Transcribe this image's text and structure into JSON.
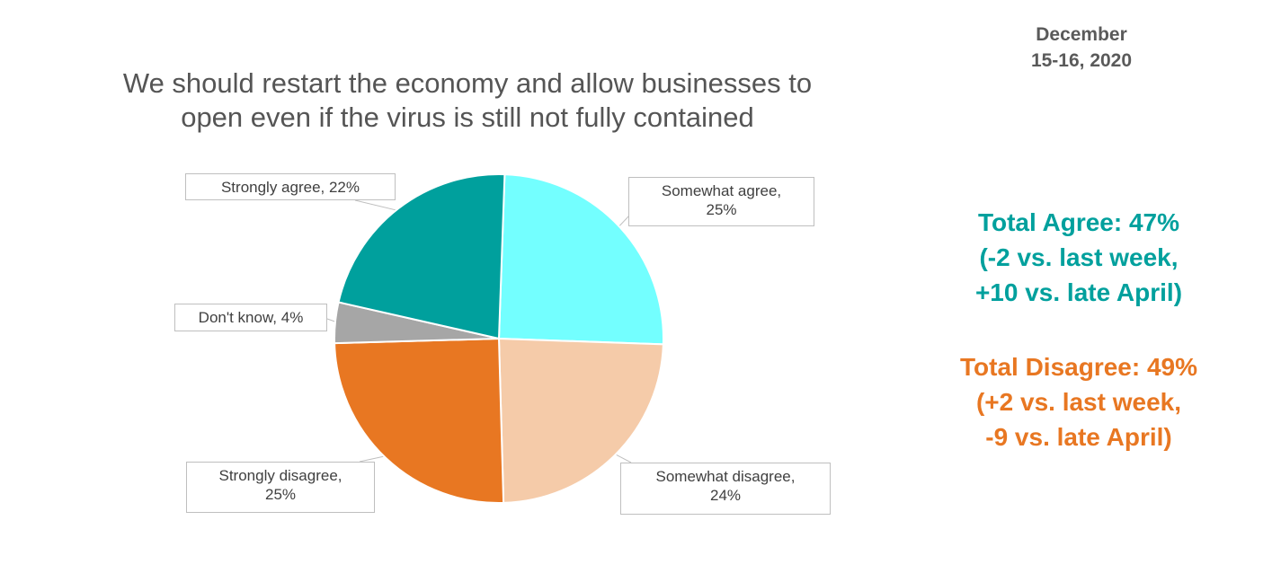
{
  "header": {
    "date_line1": "December",
    "date_line2": "15-16, 2020"
  },
  "chart_data": {
    "type": "pie",
    "title_line1": "We should restart the economy and allow businesses to",
    "title_line2": "open even if the virus is still not fully contained",
    "slices": [
      {
        "label": "Somewhat agree",
        "value": 25,
        "color": "#73ffff",
        "label_text": "Somewhat agree,",
        "value_text": "25%"
      },
      {
        "label": "Somewhat disagree",
        "value": 24,
        "color": "#f5cba9",
        "label_text": "Somewhat disagree,",
        "value_text": "24%"
      },
      {
        "label": "Strongly disagree",
        "value": 25,
        "color": "#e87722",
        "label_text": "Strongly disagree,",
        "value_text": "25%"
      },
      {
        "label": "Don't know",
        "value": 4,
        "color": "#a6a6a6",
        "label_text": "Don't know, 4%",
        "value_text": ""
      },
      {
        "label": "Strongly agree",
        "value": 22,
        "color": "#00a09d",
        "label_text": "Strongly agree, 22%",
        "value_text": ""
      }
    ]
  },
  "summary": {
    "agree": {
      "line1": "Total Agree: 47%",
      "line2": "(-2 vs. last week,",
      "line3": "+10 vs. late April)",
      "color": "#00a09d"
    },
    "disagree": {
      "line1": "Total Disagree: 49%",
      "line2": "(+2 vs. last week,",
      "line3": "-9 vs. late April)",
      "color": "#e87722"
    }
  }
}
